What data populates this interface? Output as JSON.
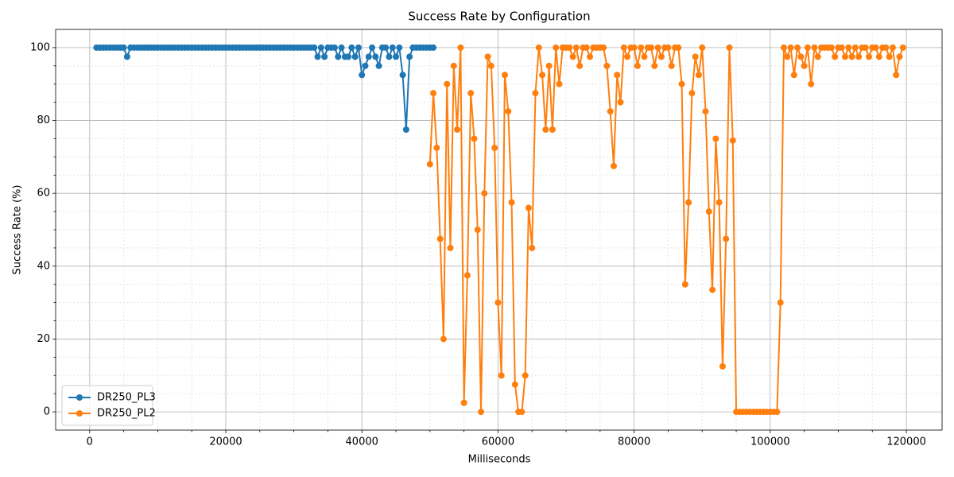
{
  "chart_data": {
    "type": "line",
    "title": "Success Rate by Configuration",
    "xlabel": "Milliseconds",
    "ylabel": "Success Rate (%)",
    "xlim": [
      -5000,
      125250
    ],
    "ylim": [
      -5,
      105
    ],
    "xticks": [
      0,
      20000,
      40000,
      60000,
      80000,
      100000,
      120000
    ],
    "yticks": [
      0,
      20,
      40,
      60,
      80,
      100
    ],
    "xminorticks": [
      5000,
      10000,
      15000,
      25000,
      30000,
      35000,
      45000,
      50000,
      55000,
      65000,
      70000,
      75000,
      85000,
      90000,
      95000,
      105000,
      110000,
      115000
    ],
    "yminorticks": [
      5,
      10,
      15,
      25,
      30,
      35,
      45,
      50,
      55,
      65,
      70,
      75,
      85,
      90,
      95
    ],
    "grid": true,
    "minor_grid": true,
    "legend_loc": "lower left",
    "series": [
      {
        "name": "DR250_PL3",
        "color": "#1f77b4",
        "x": [
          1000,
          1500,
          2000,
          2500,
          3000,
          3500,
          4000,
          4500,
          5000,
          5500,
          6000,
          6500,
          7000,
          7500,
          8000,
          8500,
          9000,
          9500,
          10000,
          10500,
          11000,
          11500,
          12000,
          12500,
          13000,
          13500,
          14000,
          14500,
          15000,
          15500,
          16000,
          16500,
          17000,
          17500,
          18000,
          18500,
          19000,
          19500,
          20000,
          20500,
          21000,
          21500,
          22000,
          22500,
          23000,
          23500,
          24000,
          24500,
          25000,
          25500,
          26000,
          26500,
          27000,
          27500,
          28000,
          28500,
          29000,
          29500,
          30000,
          30500,
          31000,
          31500,
          32000,
          32500,
          33000,
          33500,
          34000,
          34500,
          35000,
          35500,
          36000,
          36500,
          37000,
          37500,
          38000,
          38500,
          39000,
          39500,
          40000,
          40500,
          41000,
          41500,
          42000,
          42500,
          43000,
          43500,
          44000,
          44500,
          45000,
          45500,
          46000,
          46500,
          47000,
          47500,
          48000,
          48500,
          49000,
          49500,
          50000,
          50500
        ],
        "values": [
          100,
          100,
          100,
          100,
          100,
          100,
          100,
          100,
          100,
          97.5,
          100,
          100,
          100,
          100,
          100,
          100,
          100,
          100,
          100,
          100,
          100,
          100,
          100,
          100,
          100,
          100,
          100,
          100,
          100,
          100,
          100,
          100,
          100,
          100,
          100,
          100,
          100,
          100,
          100,
          100,
          100,
          100,
          100,
          100,
          100,
          100,
          100,
          100,
          100,
          100,
          100,
          100,
          100,
          100,
          100,
          100,
          100,
          100,
          100,
          100,
          100,
          100,
          100,
          100,
          100,
          97.5,
          100,
          97.5,
          100,
          100,
          100,
          97.5,
          100,
          97.5,
          97.5,
          100,
          97.5,
          100,
          92.5,
          95,
          97.5,
          100,
          97.5,
          95,
          100,
          100,
          97.5,
          100,
          97.5,
          100,
          92.5,
          77.5,
          97.5,
          100,
          100,
          100,
          100,
          100,
          100,
          100
        ]
      },
      {
        "name": "DR250_PL2",
        "color": "#ff7f0e",
        "x": [
          50000,
          50500,
          51000,
          51500,
          52000,
          52500,
          53000,
          53500,
          54000,
          54500,
          55000,
          55500,
          56000,
          56500,
          57000,
          57500,
          58000,
          58500,
          59000,
          59500,
          60000,
          60500,
          61000,
          61500,
          62000,
          62500,
          63000,
          63500,
          64000,
          64500,
          65000,
          65500,
          66000,
          66500,
          67000,
          67500,
          68000,
          68500,
          69000,
          69500,
          70000,
          70500,
          71000,
          71500,
          72000,
          72500,
          73000,
          73500,
          74000,
          74500,
          75000,
          75500,
          76000,
          76500,
          77000,
          77500,
          78000,
          78500,
          79000,
          79500,
          80000,
          80500,
          81000,
          81500,
          82000,
          82500,
          83000,
          83500,
          84000,
          84500,
          85000,
          85500,
          86000,
          86500,
          87000,
          87500,
          88000,
          88500,
          89000,
          89500,
          90000,
          90500,
          91000,
          91500,
          92000,
          92500,
          93000,
          93500,
          94000,
          94500,
          95000,
          95500,
          96000,
          96500,
          97000,
          97500,
          98000,
          98500,
          99000,
          99500,
          100000,
          100500,
          101000,
          101500,
          102000,
          102500,
          103000,
          103500,
          104000,
          104500,
          105000,
          105500,
          106000,
          106500,
          107000,
          107500,
          108000,
          108500,
          109000,
          109500,
          110000,
          110500,
          111000,
          111500,
          112000,
          112500,
          113000,
          113500,
          114000,
          114500,
          115000,
          115500,
          116000,
          116500,
          117000,
          117500,
          118000,
          118500,
          119000,
          119500
        ],
        "values": [
          68,
          87.5,
          72.5,
          47.5,
          20,
          90,
          45,
          95,
          77.5,
          100,
          2.5,
          37.5,
          87.5,
          75,
          50,
          0,
          60,
          97.5,
          95,
          72.5,
          30,
          10,
          92.5,
          82.5,
          57.5,
          7.5,
          0,
          0,
          10,
          56,
          45,
          87.5,
          100,
          92.5,
          77.5,
          95,
          77.5,
          100,
          90,
          100,
          100,
          100,
          97.5,
          100,
          95,
          100,
          100,
          97.5,
          100,
          100,
          100,
          100,
          95,
          82.5,
          67.5,
          92.5,
          85,
          100,
          97.5,
          100,
          100,
          95,
          100,
          97.5,
          100,
          100,
          95,
          100,
          97.5,
          100,
          100,
          95,
          100,
          100,
          90,
          35,
          57.5,
          87.5,
          97.5,
          92.5,
          100,
          82.5,
          55,
          33.5,
          75,
          57.5,
          12.5,
          47.5,
          100,
          74.5,
          0,
          0,
          0,
          0,
          0,
          0,
          0,
          0,
          0,
          0,
          0,
          0,
          0,
          30,
          100,
          97.5,
          100,
          92.5,
          100,
          97.5,
          95,
          100,
          90,
          100,
          97.5,
          100,
          100,
          100,
          100,
          97.5,
          100,
          100,
          97.5,
          100,
          97.5,
          100,
          97.5,
          100,
          100,
          97.5,
          100,
          100,
          97.5,
          100,
          100,
          97.5,
          100,
          92.5,
          97.5,
          100
        ]
      }
    ]
  }
}
